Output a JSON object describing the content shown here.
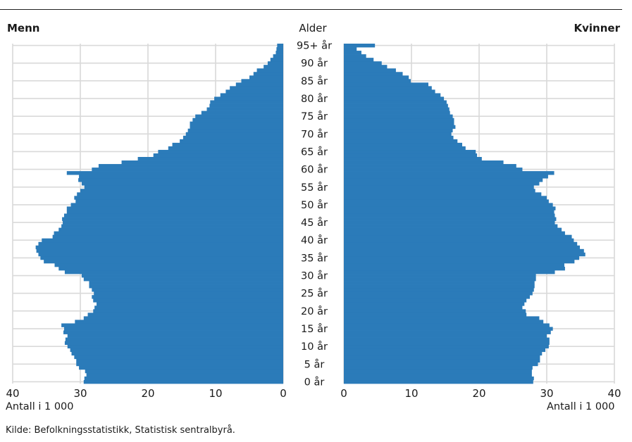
{
  "chart_data": {
    "type": "bar",
    "title": "",
    "left_title": "Menn",
    "right_title": "Kvinner",
    "age_axis_label": "Alder",
    "xlabel_left": "Antall i 1 000",
    "xlabel_right": "Antall i 1 000",
    "xlim": [
      0,
      40
    ],
    "x_ticks": [
      40,
      30,
      20,
      10,
      0
    ],
    "x_ticks_right": [
      0,
      10,
      20,
      30,
      40
    ],
    "grid": true,
    "color": "#2b7bb9",
    "age_tick_labels": [
      {
        "age": 0,
        "label": "0 år"
      },
      {
        "age": 5,
        "label": "5 år"
      },
      {
        "age": 10,
        "label": "10 år"
      },
      {
        "age": 15,
        "label": "15 år"
      },
      {
        "age": 20,
        "label": "20 år"
      },
      {
        "age": 25,
        "label": "25 år"
      },
      {
        "age": 30,
        "label": "30 år"
      },
      {
        "age": 35,
        "label": "35 år"
      },
      {
        "age": 40,
        "label": "40 år"
      },
      {
        "age": 45,
        "label": "45 år"
      },
      {
        "age": 50,
        "label": "50 år"
      },
      {
        "age": 55,
        "label": "55 år"
      },
      {
        "age": 60,
        "label": "60 år"
      },
      {
        "age": 65,
        "label": "65 år"
      },
      {
        "age": 70,
        "label": "70 år"
      },
      {
        "age": 75,
        "label": "75 år"
      },
      {
        "age": 80,
        "label": "80 år"
      },
      {
        "age": 85,
        "label": "85 år"
      },
      {
        "age": 90,
        "label": "90 år"
      },
      {
        "age": 95,
        "label": "95+ år"
      }
    ],
    "ages": [
      0,
      1,
      2,
      3,
      4,
      5,
      6,
      7,
      8,
      9,
      10,
      11,
      12,
      13,
      14,
      15,
      16,
      17,
      18,
      19,
      20,
      21,
      22,
      23,
      24,
      25,
      26,
      27,
      28,
      29,
      30,
      31,
      32,
      33,
      34,
      35,
      36,
      37,
      38,
      39,
      40,
      41,
      42,
      43,
      44,
      45,
      46,
      47,
      48,
      49,
      50,
      51,
      52,
      53,
      54,
      55,
      56,
      57,
      58,
      59,
      60,
      61,
      62,
      63,
      64,
      65,
      66,
      67,
      68,
      69,
      70,
      71,
      72,
      73,
      74,
      75,
      76,
      77,
      78,
      79,
      80,
      81,
      82,
      83,
      84,
      85,
      86,
      87,
      88,
      89,
      90,
      91,
      92,
      93,
      94,
      95
    ],
    "series": [
      {
        "name": "Menn",
        "values": [
          29.5,
          29.4,
          29.1,
          29.3,
          30.2,
          30.6,
          30.6,
          30.9,
          31.3,
          31.5,
          31.9,
          32.3,
          32.2,
          31.9,
          32.5,
          32.4,
          32.8,
          30.8,
          29.5,
          28.9,
          28.1,
          27.9,
          27.6,
          28.1,
          28.3,
          28.0,
          28.3,
          28.7,
          28.7,
          29.5,
          29.8,
          32.3,
          33.2,
          33.8,
          35.4,
          35.9,
          36.2,
          36.5,
          36.6,
          36.2,
          35.7,
          34.1,
          33.9,
          33.2,
          32.8,
          32.6,
          32.7,
          32.4,
          32.0,
          32.0,
          31.4,
          30.7,
          30.9,
          30.5,
          30.0,
          29.4,
          29.8,
          30.3,
          30.2,
          32.0,
          28.3,
          27.3,
          23.9,
          21.5,
          19.2,
          18.5,
          17.0,
          16.4,
          15.3,
          14.8,
          14.4,
          14.1,
          13.8,
          13.8,
          13.4,
          13.0,
          12.1,
          11.3,
          10.9,
          10.8,
          10.2,
          9.3,
          8.5,
          7.9,
          7.0,
          6.2,
          5.0,
          4.4,
          3.9,
          2.9,
          2.3,
          1.9,
          1.5,
          1.1,
          1.0,
          0.9
        ]
      },
      {
        "name": "Kvinner",
        "values": [
          28.0,
          28.1,
          27.8,
          27.8,
          27.9,
          28.7,
          29.0,
          29.0,
          29.3,
          29.8,
          30.3,
          30.4,
          30.4,
          30.0,
          30.6,
          30.9,
          30.4,
          29.5,
          28.9,
          27.0,
          26.9,
          26.4,
          26.7,
          27.0,
          27.5,
          27.9,
          28.1,
          28.2,
          28.2,
          28.4,
          28.4,
          31.2,
          32.7,
          32.6,
          34.1,
          34.8,
          35.7,
          35.5,
          34.9,
          34.5,
          34.0,
          33.7,
          32.7,
          32.2,
          31.6,
          31.2,
          31.4,
          31.2,
          31.1,
          31.3,
          30.9,
          30.3,
          30.0,
          29.2,
          28.3,
          28.1,
          28.9,
          29.4,
          30.2,
          31.1,
          26.4,
          25.5,
          23.6,
          20.4,
          19.7,
          19.5,
          18.0,
          17.5,
          16.8,
          16.2,
          15.9,
          16.1,
          16.5,
          16.3,
          16.3,
          16.1,
          15.7,
          15.6,
          15.4,
          15.2,
          14.8,
          14.3,
          13.5,
          13.0,
          12.5,
          9.9,
          9.6,
          8.7,
          7.7,
          6.4,
          5.6,
          4.4,
          3.3,
          2.6,
          1.9,
          4.6
        ]
      }
    ]
  },
  "footer": {
    "source": "Kilde: Befolkningsstatistikk, Statistisk sentralbyrå."
  }
}
